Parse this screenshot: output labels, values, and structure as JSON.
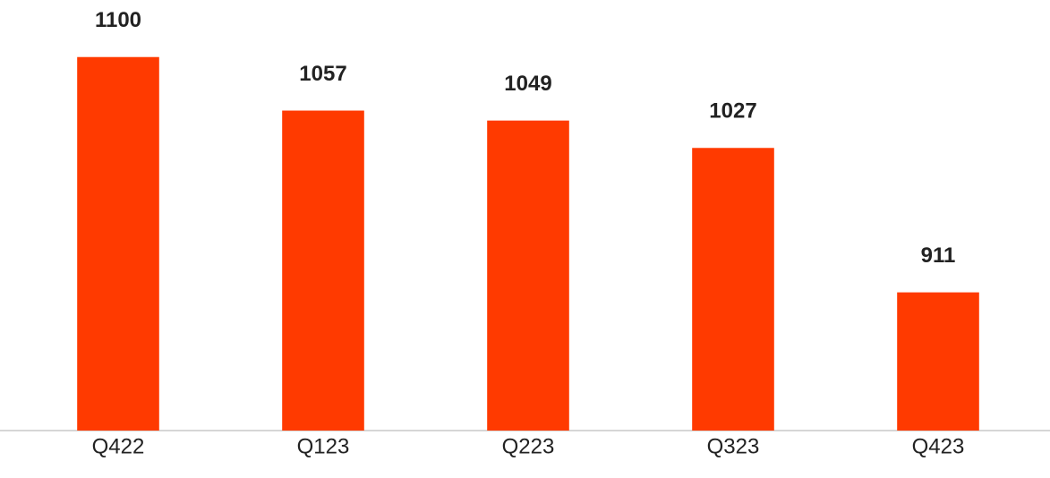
{
  "chart_data": {
    "type": "bar",
    "categories": [
      "Q422",
      "Q123",
      "Q223",
      "Q323",
      "Q423"
    ],
    "values": [
      1100,
      1057,
      1049,
      1027,
      911
    ],
    "color": "#ff3a00",
    "ylim": [
      800,
      1130
    ]
  }
}
